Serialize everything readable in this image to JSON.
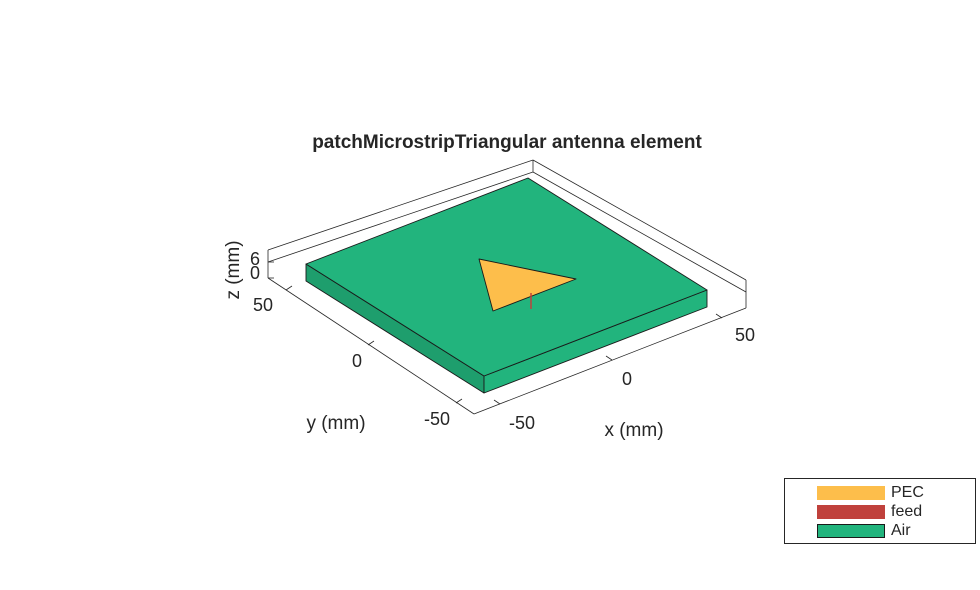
{
  "chart_data": {
    "type": "3d-geometry",
    "title": "patchMicrostripTriangular antenna element",
    "xlabel": "x (mm)",
    "ylabel": "y (mm)",
    "zlabel": "z (mm)",
    "x_ticks": [
      "-50",
      "0",
      "50"
    ],
    "y_ticks": [
      "-50",
      "0",
      "50"
    ],
    "z_ticks": [
      "0",
      "6"
    ],
    "grid": false,
    "legend_placement": "bottom-right",
    "legend": [
      {
        "label": "PEC",
        "color": "#FDBE4B"
      },
      {
        "label": "feed",
        "color": "#C0413C"
      },
      {
        "label": "Air",
        "color": "#22B47D"
      }
    ],
    "colors": {
      "substrate_top": "#22B47D",
      "substrate_side": "#1E9E6D",
      "patch": "#FDBE4B",
      "feed": "#C0413C",
      "edges": "#1a1a1a",
      "box": "#262626"
    }
  }
}
